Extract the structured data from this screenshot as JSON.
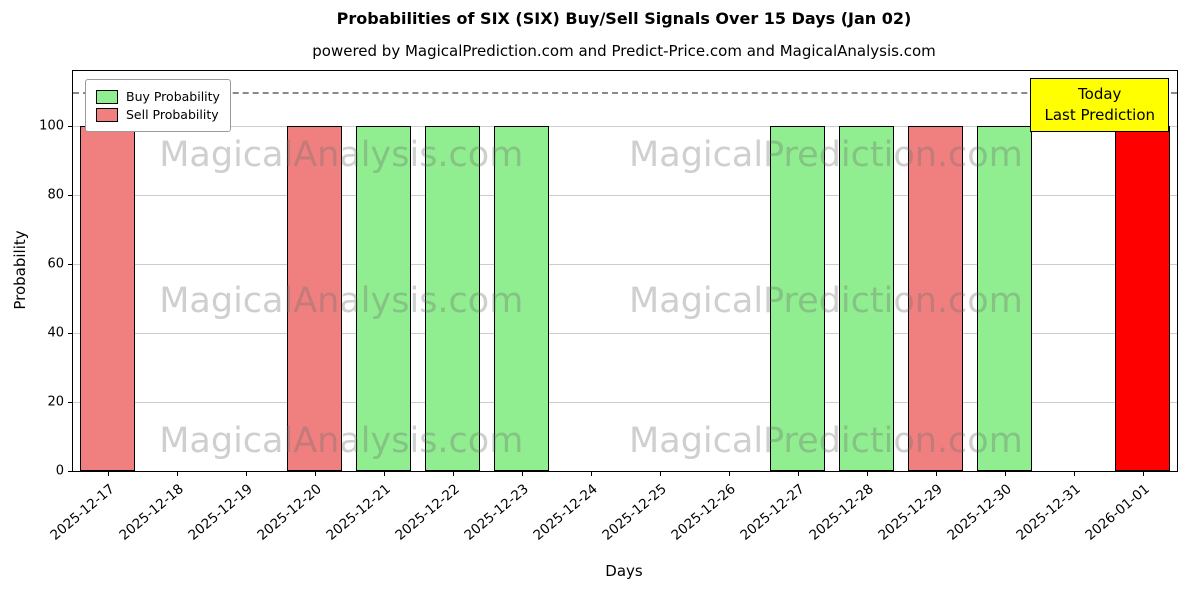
{
  "figure": {
    "title": "Probabilities of SIX (SIX) Buy/Sell Signals Over 15 Days (Jan 02)",
    "subtitle": "powered by MagicalPrediction.com and Predict-Price.com and MagicalAnalysis.com"
  },
  "legend": {
    "items": [
      {
        "label": "Buy Probability",
        "color": "#90ee90"
      },
      {
        "label": "Sell Probability",
        "color": "#f08080"
      }
    ]
  },
  "annotation_box": {
    "line1": "Today",
    "line2": "Last Prediction",
    "bg": "#ffff00"
  },
  "watermarks": {
    "left_text": "MagicalAnalysis.com",
    "right_text": "MagicalPrediction.com"
  },
  "chart_data": {
    "type": "bar",
    "title": "Probabilities of SIX (SIX) Buy/Sell Signals Over 15 Days (Jan 02)",
    "xlabel": "Days",
    "ylabel": "Probability",
    "ylim": [
      0,
      116
    ],
    "yticks": [
      0,
      20,
      40,
      60,
      80,
      100
    ],
    "grid": "horizontal",
    "legend_position": "upper-left",
    "threshold_line": {
      "y": 110,
      "style": "dashed",
      "color": "#8a8a8a"
    },
    "categories": [
      "2025-12-17",
      "2025-12-18",
      "2025-12-19",
      "2025-12-20",
      "2025-12-21",
      "2025-12-22",
      "2025-12-23",
      "2025-12-24",
      "2025-12-25",
      "2025-12-26",
      "2025-12-27",
      "2025-12-28",
      "2025-12-29",
      "2025-12-30",
      "2025-12-31",
      "2026-01-01"
    ],
    "series": [
      {
        "name": "Buy Probability",
        "color": "#90ee90",
        "values": [
          0,
          0,
          0,
          0,
          100,
          100,
          100,
          0,
          0,
          0,
          100,
          100,
          0,
          100,
          0,
          0
        ]
      },
      {
        "name": "Sell Probability",
        "color": "#f08080",
        "values": [
          100,
          0,
          0,
          100,
          0,
          0,
          0,
          0,
          0,
          0,
          0,
          0,
          100,
          0,
          0,
          0
        ]
      },
      {
        "name": "Today Prediction",
        "color": "#ff0000",
        "values": [
          0,
          0,
          0,
          0,
          0,
          0,
          0,
          0,
          0,
          0,
          0,
          0,
          0,
          0,
          0,
          100
        ]
      }
    ]
  }
}
